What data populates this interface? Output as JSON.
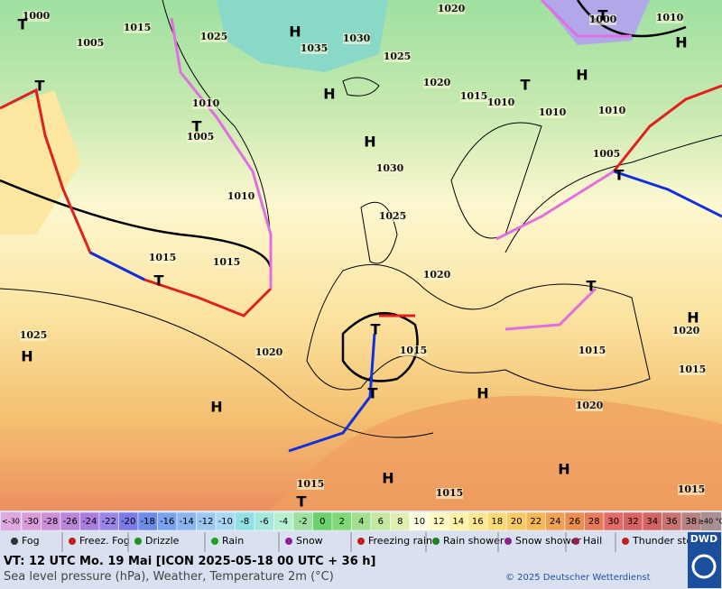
{
  "map": {
    "isobar_labels": [
      "1000",
      "1015",
      "1005",
      "1020",
      "1000",
      "1010",
      "1035",
      "1030",
      "1025",
      "1025",
      "1020",
      "1015",
      "1010",
      "1010",
      "1010",
      "1010",
      "1005",
      "1030",
      "1010",
      "1005",
      "1025",
      "1015",
      "1015",
      "1020",
      "1015",
      "1015",
      "1020",
      "1025",
      "1020",
      "1015",
      "1020",
      "1015",
      "1015",
      "1015"
    ],
    "centers": [
      "T",
      "T",
      "H",
      "T",
      "H",
      "H",
      "H",
      "T",
      "T",
      "H",
      "T",
      "T",
      "T",
      "H",
      "H",
      "H",
      "T",
      "T",
      "H",
      "H",
      "H",
      "T"
    ]
  },
  "scale": {
    "low_label": "<-30",
    "values": [
      -30,
      -28,
      -26,
      -24,
      -22,
      -20,
      -18,
      -16,
      -14,
      -12,
      -10,
      -8,
      -6,
      -4,
      -2,
      0,
      2,
      4,
      6,
      8,
      10,
      12,
      14,
      16,
      18,
      20,
      22,
      24,
      26,
      28,
      30,
      32,
      34,
      36,
      38
    ],
    "colors": [
      "#d99cd9",
      "#cc90d8",
      "#bb86da",
      "#aa7ee0",
      "#9a86e8",
      "#7a7ae8",
      "#6c8ce8",
      "#7aa2ee",
      "#8cb6f0",
      "#9cc8f2",
      "#aad8f4",
      "#90e0e6",
      "#a4e8dc",
      "#b6f0d0",
      "#9ee0a0",
      "#6cd06c",
      "#80d878",
      "#a2e090",
      "#c2e8a2",
      "#e0f0b2",
      "#fdfde2",
      "#fff9c2",
      "#fff2a8",
      "#fde790",
      "#fbdb78",
      "#f8cb66",
      "#f4b858",
      "#f0a252",
      "#ec8e52",
      "#e87a5a",
      "#e26a68",
      "#da6262",
      "#d26464",
      "#c87272",
      "#b88282"
    ],
    "high_label": "≥40 °C"
  },
  "legend": [
    "Fog",
    "Freez. Fog",
    "Drizzle",
    "Rain",
    "Snow",
    "Freezing rain",
    "Rain shower",
    "Snow shower",
    "Hail",
    "Thunder storm"
  ],
  "footer": {
    "valid_time": "VT: 12 UTC Mo.  19 Mai [ICON 2025-05-18  00 UTC + 36 h]",
    "description": "Sea level pressure (hPa), Weather, Temperature 2m (°C)",
    "copyright": "© 2025 Deutscher Wetterdienst",
    "logo": "DWD"
  }
}
